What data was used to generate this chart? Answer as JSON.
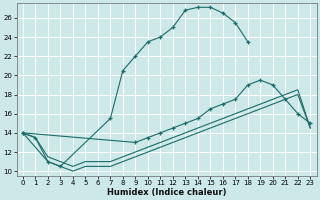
{
  "xlabel": "Humidex (Indice chaleur)",
  "bg_color": "#cce8e8",
  "grid_color": "#ffffff",
  "line_color": "#1a6b6b",
  "xlim": [
    -0.5,
    23.5
  ],
  "ylim": [
    9.5,
    27.5
  ],
  "xticks": [
    0,
    1,
    2,
    3,
    4,
    5,
    6,
    7,
    8,
    9,
    10,
    11,
    12,
    13,
    14,
    15,
    16,
    17,
    18,
    19,
    20,
    21,
    22,
    23
  ],
  "yticks": [
    10,
    12,
    14,
    16,
    18,
    20,
    22,
    24,
    26
  ],
  "line1": {
    "x": [
      0,
      1,
      2,
      3,
      7,
      8,
      9,
      10,
      11,
      12,
      13,
      14,
      15,
      16,
      17,
      18
    ],
    "y": [
      14,
      13.5,
      11,
      10.5,
      15.5,
      20.5,
      22,
      23.5,
      24,
      25,
      26.8,
      27.1,
      27.1,
      26.5,
      25.5,
      23.5
    ]
  },
  "line2": {
    "x": [
      0,
      1,
      2,
      3,
      4,
      5,
      6,
      7,
      8,
      9,
      10,
      11,
      12,
      13,
      14,
      15,
      16,
      17,
      18,
      19,
      20,
      21,
      22,
      23
    ],
    "y": [
      14,
      13.5,
      11.5,
      11.0,
      10.5,
      11.0,
      11.0,
      11.0,
      11.5,
      12.0,
      12.5,
      13.0,
      13.5,
      14.0,
      14.5,
      15.0,
      15.5,
      16.0,
      16.5,
      17.0,
      17.5,
      18.0,
      18.5,
      14.5
    ]
  },
  "line3": {
    "x": [
      0,
      9,
      10,
      11,
      12,
      13,
      14,
      15,
      16,
      17,
      18,
      19,
      20,
      21,
      22,
      23
    ],
    "y": [
      14,
      13.0,
      13.5,
      14.0,
      14.5,
      15.0,
      15.5,
      16.5,
      17.0,
      17.5,
      19.0,
      19.5,
      19.0,
      17.5,
      16.0,
      15.0
    ]
  },
  "line4": {
    "x": [
      0,
      2,
      3,
      4,
      5,
      6,
      7,
      8,
      9,
      10,
      11,
      12,
      13,
      14,
      15,
      16,
      17,
      18,
      19,
      20,
      21,
      22,
      23
    ],
    "y": [
      14,
      11.0,
      10.5,
      10.0,
      10.5,
      10.5,
      10.5,
      11.0,
      11.5,
      12.0,
      12.5,
      13.0,
      13.5,
      14.0,
      14.5,
      15.0,
      15.5,
      16.0,
      16.5,
      17.0,
      17.5,
      18.0,
      14.5
    ]
  }
}
